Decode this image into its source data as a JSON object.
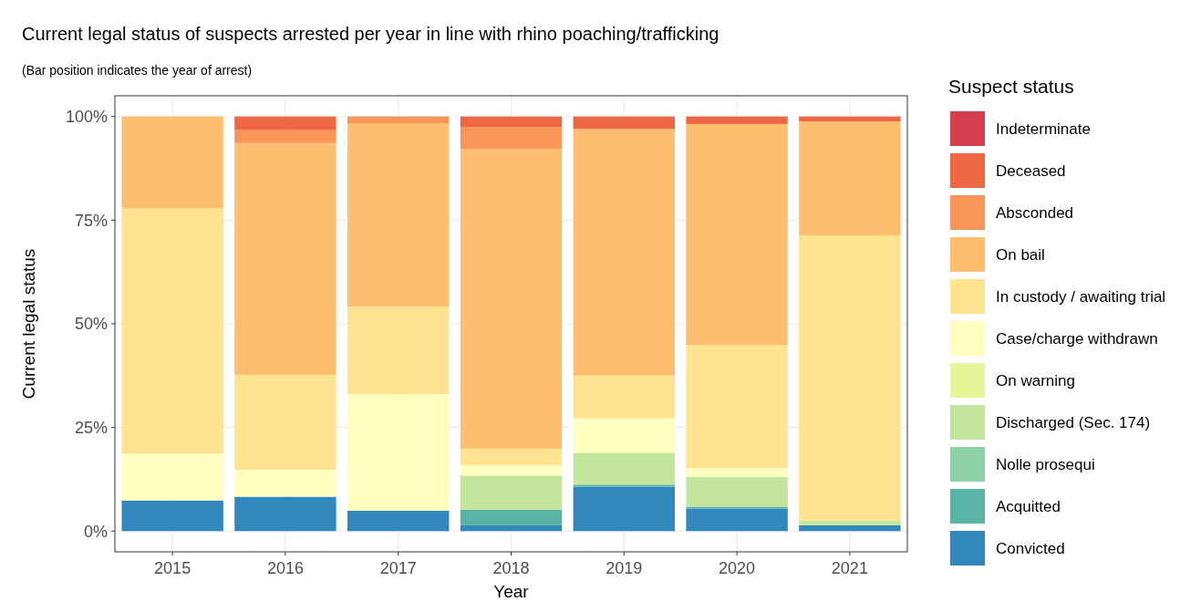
{
  "chart_data": {
    "type": "bar",
    "stacked": true,
    "title": "Current legal status of suspects arrested per year in line with rhino poaching/trafficking",
    "subtitle": "(Bar position indicates the year of arrest)",
    "xlabel": "Year",
    "ylabel": "Current legal status",
    "legend_title": "Suspect status",
    "legend": "right",
    "grid": true,
    "categories": [
      "2015",
      "2016",
      "2017",
      "2018",
      "2019",
      "2020",
      "2021"
    ],
    "ylim": [
      -5,
      105
    ],
    "yticks": [
      {
        "value": 0,
        "label": "0%"
      },
      {
        "value": 25,
        "label": "25%"
      },
      {
        "value": 50,
        "label": "50%"
      },
      {
        "value": 75,
        "label": "75%"
      },
      {
        "value": 100,
        "label": "100%"
      }
    ],
    "series": [
      {
        "name": "Convicted",
        "color": "#3288bd",
        "values": [
          7.4,
          8.3,
          4.9,
          1.4,
          10.7,
          5.4,
          1.4
        ]
      },
      {
        "name": "Acquitted",
        "color": "#5ab4a6",
        "values": [
          0,
          0,
          0,
          3.8,
          0.5,
          0.5,
          0
        ]
      },
      {
        "name": "Nolle prosequi",
        "color": "#8fd1a6",
        "values": [
          0,
          0,
          0,
          0,
          0,
          0,
          0
        ]
      },
      {
        "name": "Discharged (Sec. 174)",
        "color": "#c4e59c",
        "values": [
          0,
          0,
          0,
          8.2,
          7.7,
          7.2,
          1.1
        ]
      },
      {
        "name": "On warning",
        "color": "#e6f598",
        "values": [
          0,
          0,
          0,
          0,
          0,
          0,
          0
        ]
      },
      {
        "name": "Case/charge withdrawn",
        "color": "#ffffbf",
        "values": [
          11.3,
          6.5,
          28.1,
          2.5,
          8.3,
          2.1,
          0
        ]
      },
      {
        "name": "In custody / awaiting trial",
        "color": "#fee391",
        "values": [
          59.1,
          22.9,
          21.1,
          4.0,
          10.3,
          29.7,
          68.8
        ]
      },
      {
        "name": "On bail",
        "color": "#fdbf6f",
        "values": [
          22.2,
          55.9,
          44.3,
          72.3,
          59.5,
          53.3,
          27.5
        ]
      },
      {
        "name": "Absconded",
        "color": "#f99557",
        "values": [
          0,
          3.1,
          1.6,
          5.3,
          0,
          0,
          0
        ]
      },
      {
        "name": "Deceased",
        "color": "#ee6642",
        "values": [
          0,
          3.3,
          0,
          2.5,
          3.0,
          1.8,
          1.2
        ]
      },
      {
        "name": "Indeterminate",
        "color": "#d53e4f",
        "values": [
          0,
          0,
          0,
          0,
          0,
          0,
          0
        ]
      }
    ]
  }
}
